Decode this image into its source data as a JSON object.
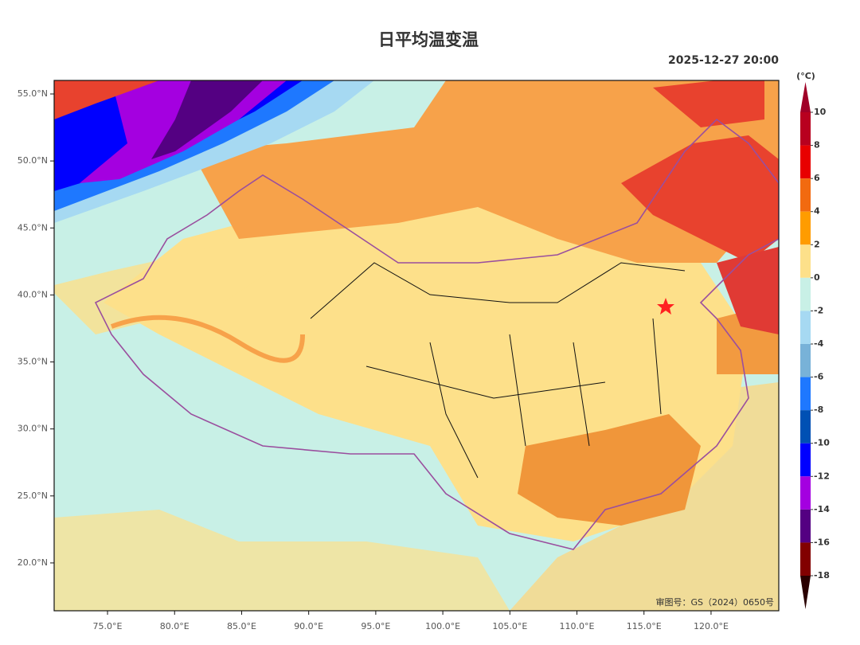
{
  "header": {
    "title": "日平均温变温",
    "time": "2025-12-27 20:00"
  },
  "map": {
    "xlim": [
      71.02,
      125.05
    ],
    "ylim": [
      16.43,
      56.01
    ],
    "xticks": [
      {
        "value": 75,
        "label": "75.0°E"
      },
      {
        "value": 80,
        "label": "80.0°E"
      },
      {
        "value": 85,
        "label": "85.0°E"
      },
      {
        "value": 90,
        "label": "90.0°E"
      },
      {
        "value": 95,
        "label": "95.0°E"
      },
      {
        "value": 100,
        "label": "100.0°E"
      },
      {
        "value": 105,
        "label": "105.0°E"
      },
      {
        "value": 110,
        "label": "110.0°E"
      },
      {
        "value": 115,
        "label": "115.0°E"
      },
      {
        "value": 120,
        "label": "120.0°E"
      }
    ],
    "yticks": [
      {
        "value": 55,
        "label": "55.0°N"
      },
      {
        "value": 50,
        "label": "50.0°N"
      },
      {
        "value": 45,
        "label": "45.0°N"
      },
      {
        "value": 40,
        "label": "40.0°N"
      },
      {
        "value": 35,
        "label": "35.0°N"
      },
      {
        "value": 30,
        "label": "30.0°N"
      },
      {
        "value": 25,
        "label": "25.0°N"
      },
      {
        "value": 20,
        "label": "20.0°N"
      }
    ],
    "credit": "审图号：GS（2024）0650号"
  },
  "colorbar": {
    "unit": "(°C)",
    "levels": [
      10,
      8,
      6,
      4,
      2,
      0,
      -2,
      -4,
      -6,
      -8,
      -10,
      -12,
      -14,
      -16,
      -18
    ],
    "colors": [
      "#b8001f",
      "#e80000",
      "#f26a10",
      "#ff9c00",
      "#fde08a",
      "#c8f0e6",
      "#a6d9f2",
      "#78b2d8",
      "#1e78ff",
      "#0050b4",
      "#0000ff",
      "#a400e0",
      "#540082",
      "#820000"
    ],
    "over_color": "#a00028",
    "under_color": "#2a0000"
  }
}
